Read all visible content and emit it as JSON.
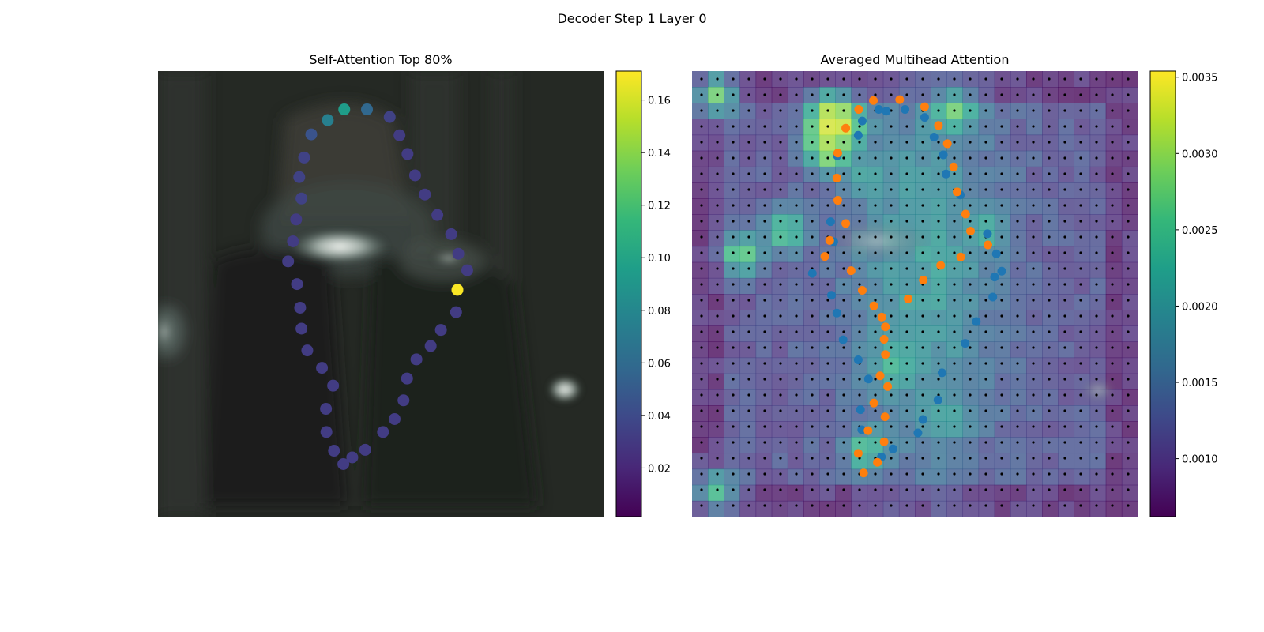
{
  "figure": {
    "suptitle": "Decoder Step 1 Layer 0"
  },
  "colors": {
    "orange": "#ff7f0e",
    "blue": "#1f77b4",
    "grid_dot": "#000000",
    "viridis": [
      "#440154",
      "#482878",
      "#3e4989",
      "#31688e",
      "#26828e",
      "#1f9e89",
      "#35b779",
      "#6ece58",
      "#b5de2b",
      "#fde725"
    ]
  },
  "chart_data": [
    {
      "type": "scatter",
      "title": "Self-Attention Top 80%",
      "background": "camera image (dark scene, bright reflective object)",
      "xlim": [
        0,
        1
      ],
      "ylim": [
        1,
        0
      ],
      "colorbar": {
        "min": 0.0015,
        "max": 0.171,
        "ticks": [
          "0.02",
          "0.04",
          "0.06",
          "0.08",
          "0.10",
          "0.12",
          "0.14",
          "0.16"
        ],
        "tick_values": [
          0.02,
          0.04,
          0.06,
          0.08,
          0.1,
          0.12,
          0.14,
          0.16
        ]
      },
      "points": [
        {
          "x": 0.418,
          "y": 0.086,
          "v": 0.095
        },
        {
          "x": 0.469,
          "y": 0.086,
          "v": 0.058
        },
        {
          "x": 0.381,
          "y": 0.11,
          "v": 0.075
        },
        {
          "x": 0.52,
          "y": 0.103,
          "v": 0.035
        },
        {
          "x": 0.344,
          "y": 0.142,
          "v": 0.045
        },
        {
          "x": 0.542,
          "y": 0.144,
          "v": 0.032
        },
        {
          "x": 0.328,
          "y": 0.194,
          "v": 0.035
        },
        {
          "x": 0.56,
          "y": 0.186,
          "v": 0.032
        },
        {
          "x": 0.317,
          "y": 0.238,
          "v": 0.035
        },
        {
          "x": 0.577,
          "y": 0.234,
          "v": 0.032
        },
        {
          "x": 0.322,
          "y": 0.286,
          "v": 0.035
        },
        {
          "x": 0.599,
          "y": 0.277,
          "v": 0.032
        },
        {
          "x": 0.31,
          "y": 0.333,
          "v": 0.032
        },
        {
          "x": 0.627,
          "y": 0.323,
          "v": 0.032
        },
        {
          "x": 0.303,
          "y": 0.382,
          "v": 0.032
        },
        {
          "x": 0.658,
          "y": 0.366,
          "v": 0.032
        },
        {
          "x": 0.292,
          "y": 0.427,
          "v": 0.032
        },
        {
          "x": 0.674,
          "y": 0.41,
          "v": 0.032
        },
        {
          "x": 0.694,
          "y": 0.447,
          "v": 0.032
        },
        {
          "x": 0.312,
          "y": 0.478,
          "v": 0.032
        },
        {
          "x": 0.672,
          "y": 0.491,
          "v": 0.17
        },
        {
          "x": 0.319,
          "y": 0.531,
          "v": 0.032
        },
        {
          "x": 0.669,
          "y": 0.541,
          "v": 0.032
        },
        {
          "x": 0.322,
          "y": 0.578,
          "v": 0.032
        },
        {
          "x": 0.635,
          "y": 0.581,
          "v": 0.032
        },
        {
          "x": 0.335,
          "y": 0.627,
          "v": 0.032
        },
        {
          "x": 0.612,
          "y": 0.617,
          "v": 0.032
        },
        {
          "x": 0.58,
          "y": 0.647,
          "v": 0.032
        },
        {
          "x": 0.368,
          "y": 0.666,
          "v": 0.032
        },
        {
          "x": 0.559,
          "y": 0.69,
          "v": 0.032
        },
        {
          "x": 0.393,
          "y": 0.706,
          "v": 0.032
        },
        {
          "x": 0.551,
          "y": 0.739,
          "v": 0.032
        },
        {
          "x": 0.377,
          "y": 0.758,
          "v": 0.032
        },
        {
          "x": 0.531,
          "y": 0.781,
          "v": 0.032
        },
        {
          "x": 0.378,
          "y": 0.81,
          "v": 0.032
        },
        {
          "x": 0.505,
          "y": 0.81,
          "v": 0.032
        },
        {
          "x": 0.395,
          "y": 0.852,
          "v": 0.032
        },
        {
          "x": 0.465,
          "y": 0.85,
          "v": 0.032
        },
        {
          "x": 0.436,
          "y": 0.867,
          "v": 0.032
        },
        {
          "x": 0.416,
          "y": 0.882,
          "v": 0.032
        }
      ]
    },
    {
      "type": "heatmap",
      "title": "Averaged Multihead Attention",
      "grid": {
        "cols": 28,
        "rows": 28
      },
      "colorbar": {
        "min": 0.00062,
        "max": 0.00354,
        "ticks": [
          "0.0010",
          "0.0015",
          "0.0020",
          "0.0025",
          "0.0030",
          "0.0035"
        ],
        "tick_values": [
          0.001,
          0.0015,
          0.002,
          0.0025,
          0.003,
          0.0035
        ]
      },
      "hotspots": [
        {
          "cx": 0.055,
          "cy": 0.053,
          "v": 0.0028
        },
        {
          "cx": 0.31,
          "cy": 0.09,
          "v": 0.003
        },
        {
          "cx": 0.34,
          "cy": 0.12,
          "v": 0.0032
        },
        {
          "cx": 0.3,
          "cy": 0.14,
          "v": 0.0034
        },
        {
          "cx": 0.31,
          "cy": 0.18,
          "v": 0.003
        },
        {
          "cx": 0.59,
          "cy": 0.09,
          "v": 0.0028
        },
        {
          "cx": 0.21,
          "cy": 0.36,
          "v": 0.0027
        },
        {
          "cx": 0.11,
          "cy": 0.41,
          "v": 0.0028
        },
        {
          "cx": 0.39,
          "cy": 0.24,
          "v": 0.0022
        },
        {
          "cx": 0.45,
          "cy": 0.66,
          "v": 0.0024
        },
        {
          "cx": 0.39,
          "cy": 0.85,
          "v": 0.0026
        },
        {
          "cx": 0.055,
          "cy": 0.94,
          "v": 0.0025
        },
        {
          "cx": 0.57,
          "cy": 0.78,
          "v": 0.0022
        },
        {
          "cx": 0.66,
          "cy": 0.36,
          "v": 0.0023
        }
      ],
      "series": [
        {
          "color": "#ff7f0e",
          "points": [
            [
              0.407,
              0.066
            ],
            [
              0.466,
              0.064
            ],
            [
              0.374,
              0.086
            ],
            [
              0.522,
              0.08
            ],
            [
              0.345,
              0.128
            ],
            [
              0.553,
              0.122
            ],
            [
              0.327,
              0.184
            ],
            [
              0.573,
              0.163
            ],
            [
              0.325,
              0.24
            ],
            [
              0.587,
              0.215
            ],
            [
              0.327,
              0.29
            ],
            [
              0.595,
              0.271
            ],
            [
              0.345,
              0.342
            ],
            [
              0.614,
              0.321
            ],
            [
              0.625,
              0.359
            ],
            [
              0.309,
              0.38
            ],
            [
              0.664,
              0.39
            ],
            [
              0.603,
              0.417
            ],
            [
              0.298,
              0.416
            ],
            [
              0.558,
              0.436
            ],
            [
              0.357,
              0.448
            ],
            [
              0.519,
              0.469
            ],
            [
              0.382,
              0.492
            ],
            [
              0.485,
              0.511
            ],
            [
              0.408,
              0.527
            ],
            [
              0.426,
              0.552
            ],
            [
              0.434,
              0.574
            ],
            [
              0.431,
              0.602
            ],
            [
              0.434,
              0.636
            ],
            [
              0.422,
              0.684
            ],
            [
              0.439,
              0.708
            ],
            [
              0.408,
              0.745
            ],
            [
              0.433,
              0.776
            ],
            [
              0.395,
              0.807
            ],
            [
              0.431,
              0.832
            ],
            [
              0.373,
              0.858
            ],
            [
              0.416,
              0.878
            ],
            [
              0.385,
              0.902
            ]
          ]
        },
        {
          "color": "#1f77b4",
          "points": [
            [
              0.419,
              0.086
            ],
            [
              0.382,
              0.112
            ],
            [
              0.436,
              0.09
            ],
            [
              0.478,
              0.086
            ],
            [
              0.522,
              0.104
            ],
            [
              0.373,
              0.144
            ],
            [
              0.543,
              0.148
            ],
            [
              0.326,
              0.19
            ],
            [
              0.564,
              0.188
            ],
            [
              0.57,
              0.231
            ],
            [
              0.602,
              0.278
            ],
            [
              0.311,
              0.338
            ],
            [
              0.663,
              0.365
            ],
            [
              0.683,
              0.41
            ],
            [
              0.318,
              0.383
            ],
            [
              0.679,
              0.462
            ],
            [
              0.695,
              0.449
            ],
            [
              0.27,
              0.454
            ],
            [
              0.313,
              0.503
            ],
            [
              0.675,
              0.507
            ],
            [
              0.325,
              0.543
            ],
            [
              0.638,
              0.562
            ],
            [
              0.339,
              0.603
            ],
            [
              0.613,
              0.611
            ],
            [
              0.373,
              0.648
            ],
            [
              0.561,
              0.677
            ],
            [
              0.396,
              0.691
            ],
            [
              0.552,
              0.738
            ],
            [
              0.378,
              0.76
            ],
            [
              0.518,
              0.782
            ],
            [
              0.381,
              0.805
            ],
            [
              0.507,
              0.812
            ],
            [
              0.425,
              0.866
            ],
            [
              0.451,
              0.848
            ]
          ]
        }
      ]
    }
  ]
}
